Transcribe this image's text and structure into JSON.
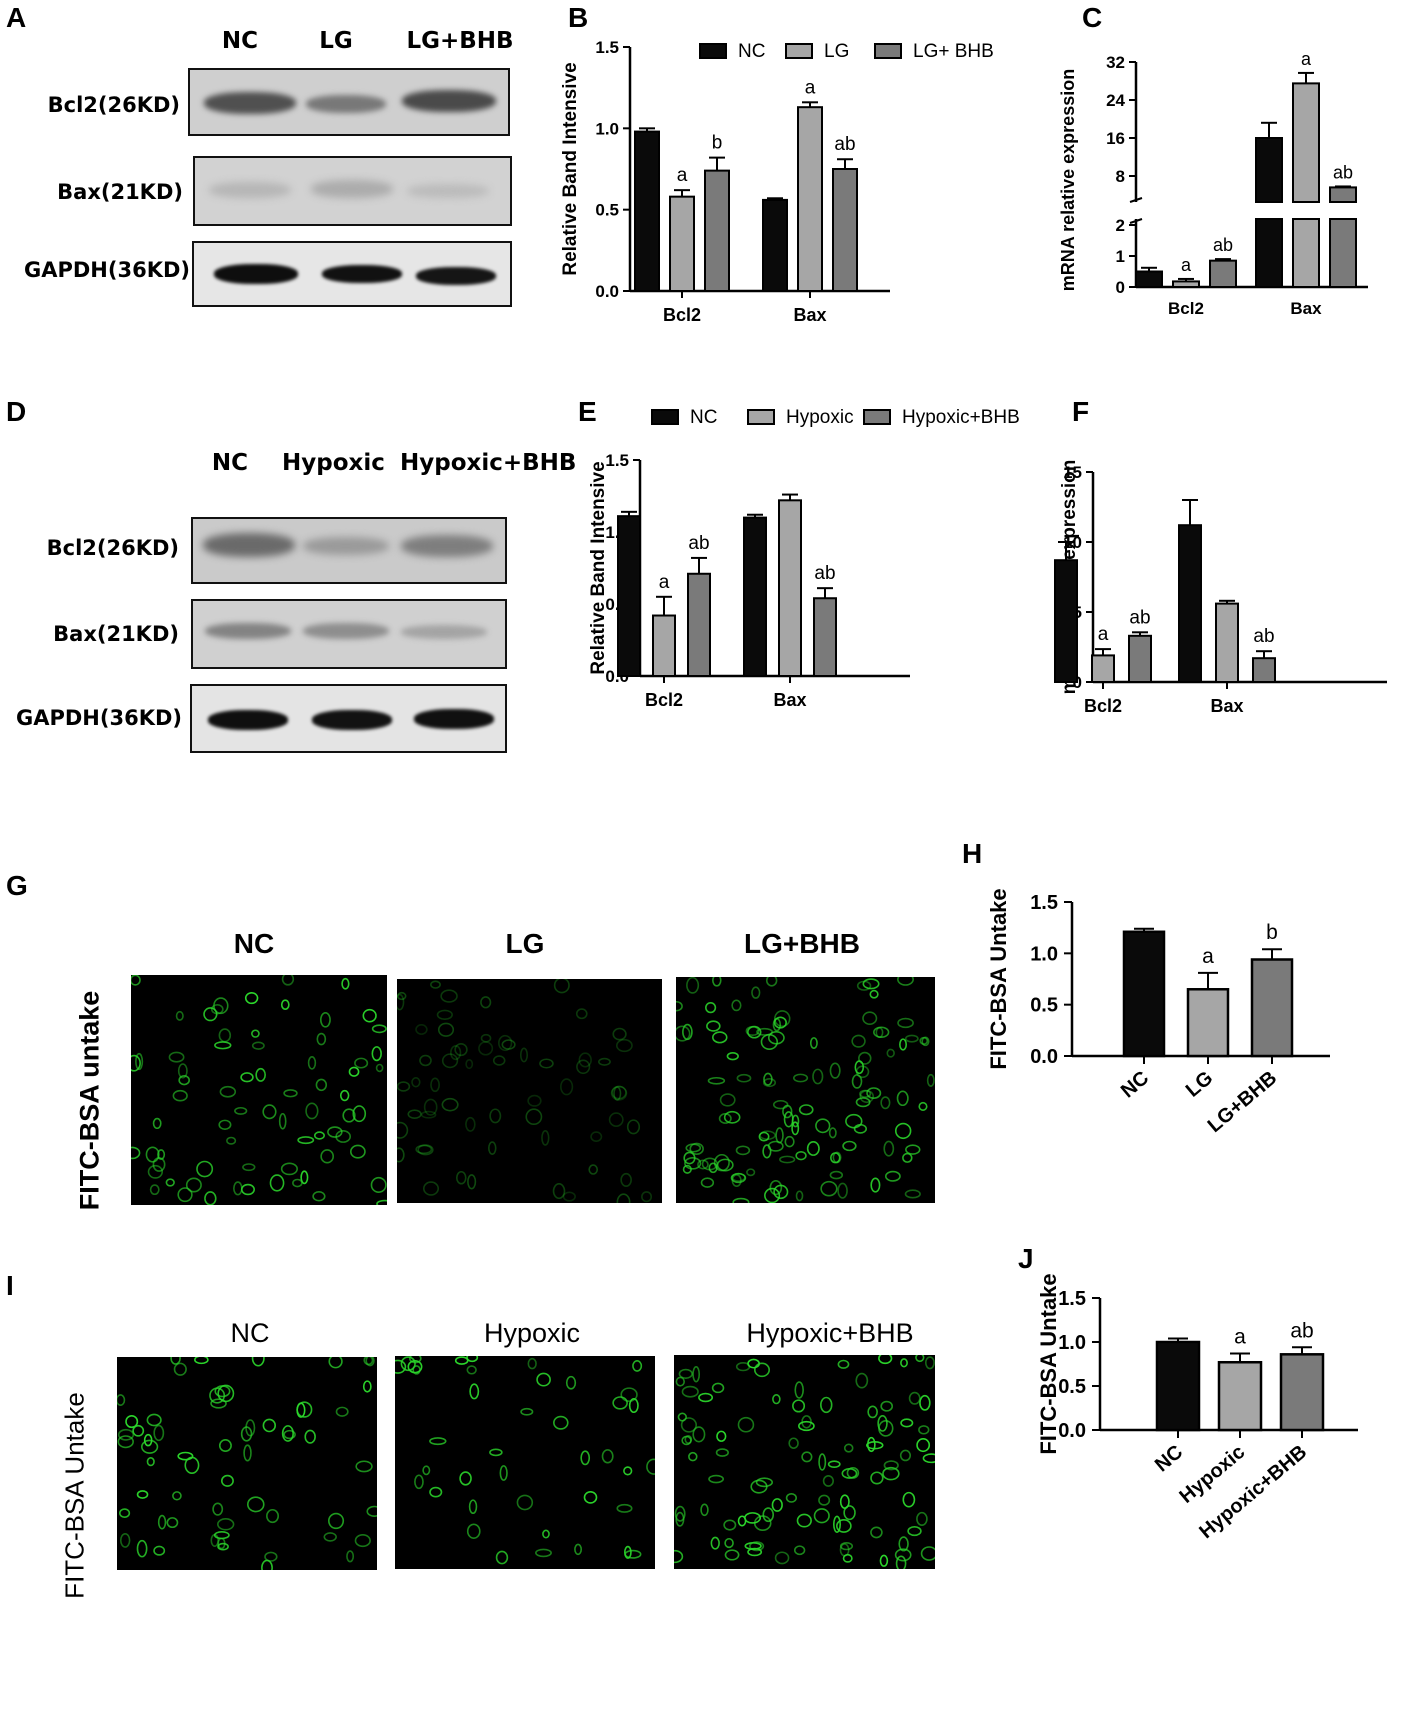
{
  "panels": {
    "A": {
      "letter": "A",
      "columns": [
        "NC",
        "LG",
        "LG+BHB"
      ],
      "rows": [
        "Bcl2(26KD)",
        "Bax(21KD)",
        "GAPDH(36KD)"
      ]
    },
    "D": {
      "letter": "D",
      "columns": [
        "NC",
        "Hypoxic",
        "Hypoxic+BHB"
      ],
      "rows": [
        "Bcl2(26KD)",
        "Bax(21KD)",
        "GAPDH(36KD)"
      ]
    },
    "G": {
      "letter": "G",
      "columns": [
        "NC",
        "LG",
        "LG+BHB"
      ],
      "ylabel": "FITC-BSA untake"
    },
    "I": {
      "letter": "I",
      "columns": [
        "NC",
        "Hypoxic",
        "Hypoxic+BHB"
      ],
      "ylabel": "FITC-BSA Untake"
    }
  },
  "colors": {
    "nc": "#0a0a0a",
    "group2": "#a6a6a6",
    "group3": "#7a7a7a",
    "fluorescence": "#2bd62b"
  },
  "chart_data": [
    {
      "id": "B",
      "letter": "B",
      "type": "bar",
      "ylabel": "Relative Band Intensive",
      "categories": [
        "Bcl2",
        "Bax"
      ],
      "ylim": [
        0,
        1.5
      ],
      "yticks": [
        "0.0",
        "0.5",
        "1.0",
        "1.5"
      ],
      "legend_position": "top",
      "series": [
        {
          "name": "NC",
          "values": [
            0.98,
            0.56
          ],
          "errors": [
            0.02,
            0.01
          ],
          "sig": [
            "",
            ""
          ]
        },
        {
          "name": "LG",
          "values": [
            0.58,
            1.13
          ],
          "errors": [
            0.04,
            0.03
          ],
          "sig": [
            "a",
            "a"
          ]
        },
        {
          "name": "LG+ BHB",
          "values": [
            0.74,
            0.75
          ],
          "errors": [
            0.08,
            0.06
          ],
          "sig": [
            "b",
            "ab"
          ]
        }
      ]
    },
    {
      "id": "C",
      "letter": "C",
      "type": "bar",
      "ylabel": "mRNA relative expression",
      "categories": [
        "Bcl2",
        "Bax"
      ],
      "broken_axis": {
        "lower": [
          0,
          2
        ],
        "upper": [
          8,
          32
        ]
      },
      "yticks": [
        "0",
        "1",
        "2",
        "8",
        "16",
        "24",
        "32"
      ],
      "series": [
        {
          "name": "NC",
          "values": [
            0.5,
            16
          ],
          "errors": [
            0.12,
            3.2
          ],
          "sig": [
            "",
            ""
          ]
        },
        {
          "name": "LG",
          "values": [
            0.18,
            27.5
          ],
          "errors": [
            0.08,
            2.2
          ],
          "sig": [
            "a",
            "a"
          ]
        },
        {
          "name": "LG+BHB",
          "values": [
            0.85,
            5.6
          ],
          "errors": [
            0.05,
            0.2
          ],
          "sig": [
            "ab",
            "ab"
          ]
        }
      ]
    },
    {
      "id": "E",
      "letter": "E",
      "type": "bar",
      "ylabel": "Relative Band Intensive",
      "categories": [
        "Bcl2",
        "Bax"
      ],
      "ylim": [
        0,
        1.5
      ],
      "yticks": [
        "0.0",
        "0.5",
        "1.0",
        "1.5"
      ],
      "legend_position": "top",
      "series": [
        {
          "name": "NC",
          "values": [
            1.11,
            1.1
          ],
          "errors": [
            0.03,
            0.02
          ],
          "sig": [
            "",
            ""
          ]
        },
        {
          "name": "Hypoxic",
          "values": [
            0.42,
            1.22
          ],
          "errors": [
            0.13,
            0.04
          ],
          "sig": [
            "a",
            ""
          ]
        },
        {
          "name": "Hypoxic+BHB",
          "values": [
            0.71,
            0.54
          ],
          "errors": [
            0.11,
            0.07
          ],
          "sig": [
            "ab",
            "ab"
          ]
        }
      ]
    },
    {
      "id": "F",
      "letter": "F",
      "type": "bar",
      "ylabel": "mRNA relative expression",
      "categories": [
        "Bcl2",
        "Bax"
      ],
      "ylim": [
        0,
        15
      ],
      "yticks": [
        "0",
        "5",
        "10",
        "15"
      ],
      "series": [
        {
          "name": "NC",
          "values": [
            8.7,
            11.2
          ],
          "errors": [
            1.3,
            1.8
          ],
          "sig": [
            "",
            ""
          ]
        },
        {
          "name": "Hypoxic",
          "values": [
            1.9,
            5.6
          ],
          "errors": [
            0.45,
            0.2
          ],
          "sig": [
            "a",
            ""
          ]
        },
        {
          "name": "Hypoxic+BHB",
          "values": [
            3.3,
            1.7
          ],
          "errors": [
            0.25,
            0.5
          ],
          "sig": [
            "ab",
            "ab"
          ]
        }
      ]
    },
    {
      "id": "H",
      "letter": "H",
      "type": "bar",
      "ylabel": "FITC-BSA Untake",
      "categories": [
        "NC",
        "LG",
        "LG+BHB"
      ],
      "ylim": [
        0,
        1.5
      ],
      "yticks": [
        "0.0",
        "0.5",
        "1.0",
        "1.5"
      ],
      "values": [
        1.21,
        0.65,
        0.94
      ],
      "errors": [
        0.03,
        0.16,
        0.1
      ],
      "sig": [
        "",
        "a",
        "b"
      ]
    },
    {
      "id": "J",
      "letter": "J",
      "type": "bar",
      "ylabel": "FITC-BSA Untake",
      "categories": [
        "NC",
        "Hypoxic",
        "Hypoxic+BHB"
      ],
      "ylim": [
        0,
        1.5
      ],
      "yticks": [
        "0.0",
        "0.5",
        "1.0",
        "1.5"
      ],
      "values": [
        1.0,
        0.77,
        0.86
      ],
      "errors": [
        0.04,
        0.1,
        0.08
      ],
      "sig": [
        "",
        "a",
        "ab"
      ]
    }
  ]
}
